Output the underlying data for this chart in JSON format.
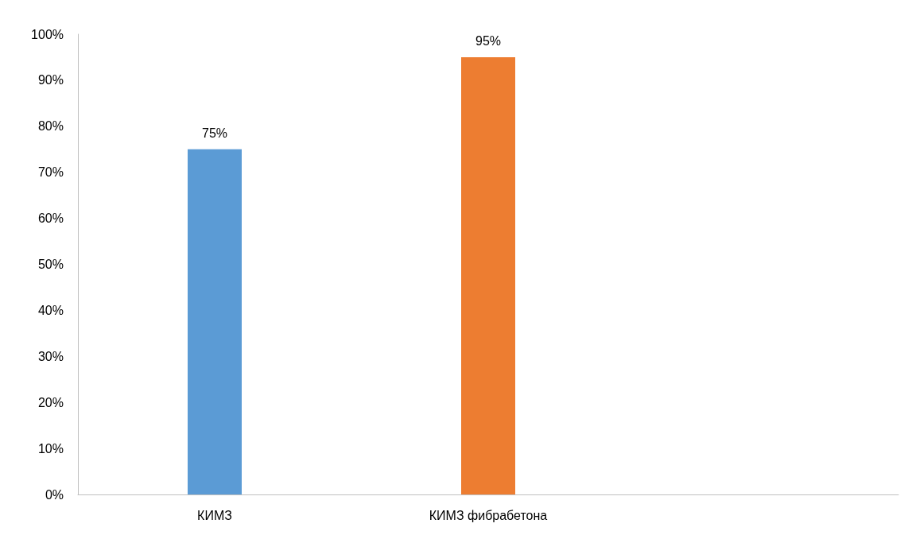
{
  "chart_data": {
    "type": "bar",
    "categories": [
      "КИМЗ",
      "КИМЗ фибрабетона",
      null
    ],
    "values": [
      75,
      95,
      null
    ],
    "colors": [
      "#5b9bd5",
      "#ed7d31",
      null
    ],
    "value_labels": [
      "75%",
      "95%",
      null
    ],
    "ylim": [
      0,
      100
    ],
    "yticks": [
      {
        "value": 0,
        "label": "0%"
      },
      {
        "value": 10,
        "label": "10%"
      },
      {
        "value": 20,
        "label": "20%"
      },
      {
        "value": 30,
        "label": "30%"
      },
      {
        "value": 40,
        "label": "40%"
      },
      {
        "value": 50,
        "label": "50%"
      },
      {
        "value": 60,
        "label": "60%"
      },
      {
        "value": 70,
        "label": "70%"
      },
      {
        "value": 80,
        "label": "80%"
      },
      {
        "value": 90,
        "label": "90%"
      },
      {
        "value": 100,
        "label": "100%"
      }
    ],
    "grid": false
  }
}
